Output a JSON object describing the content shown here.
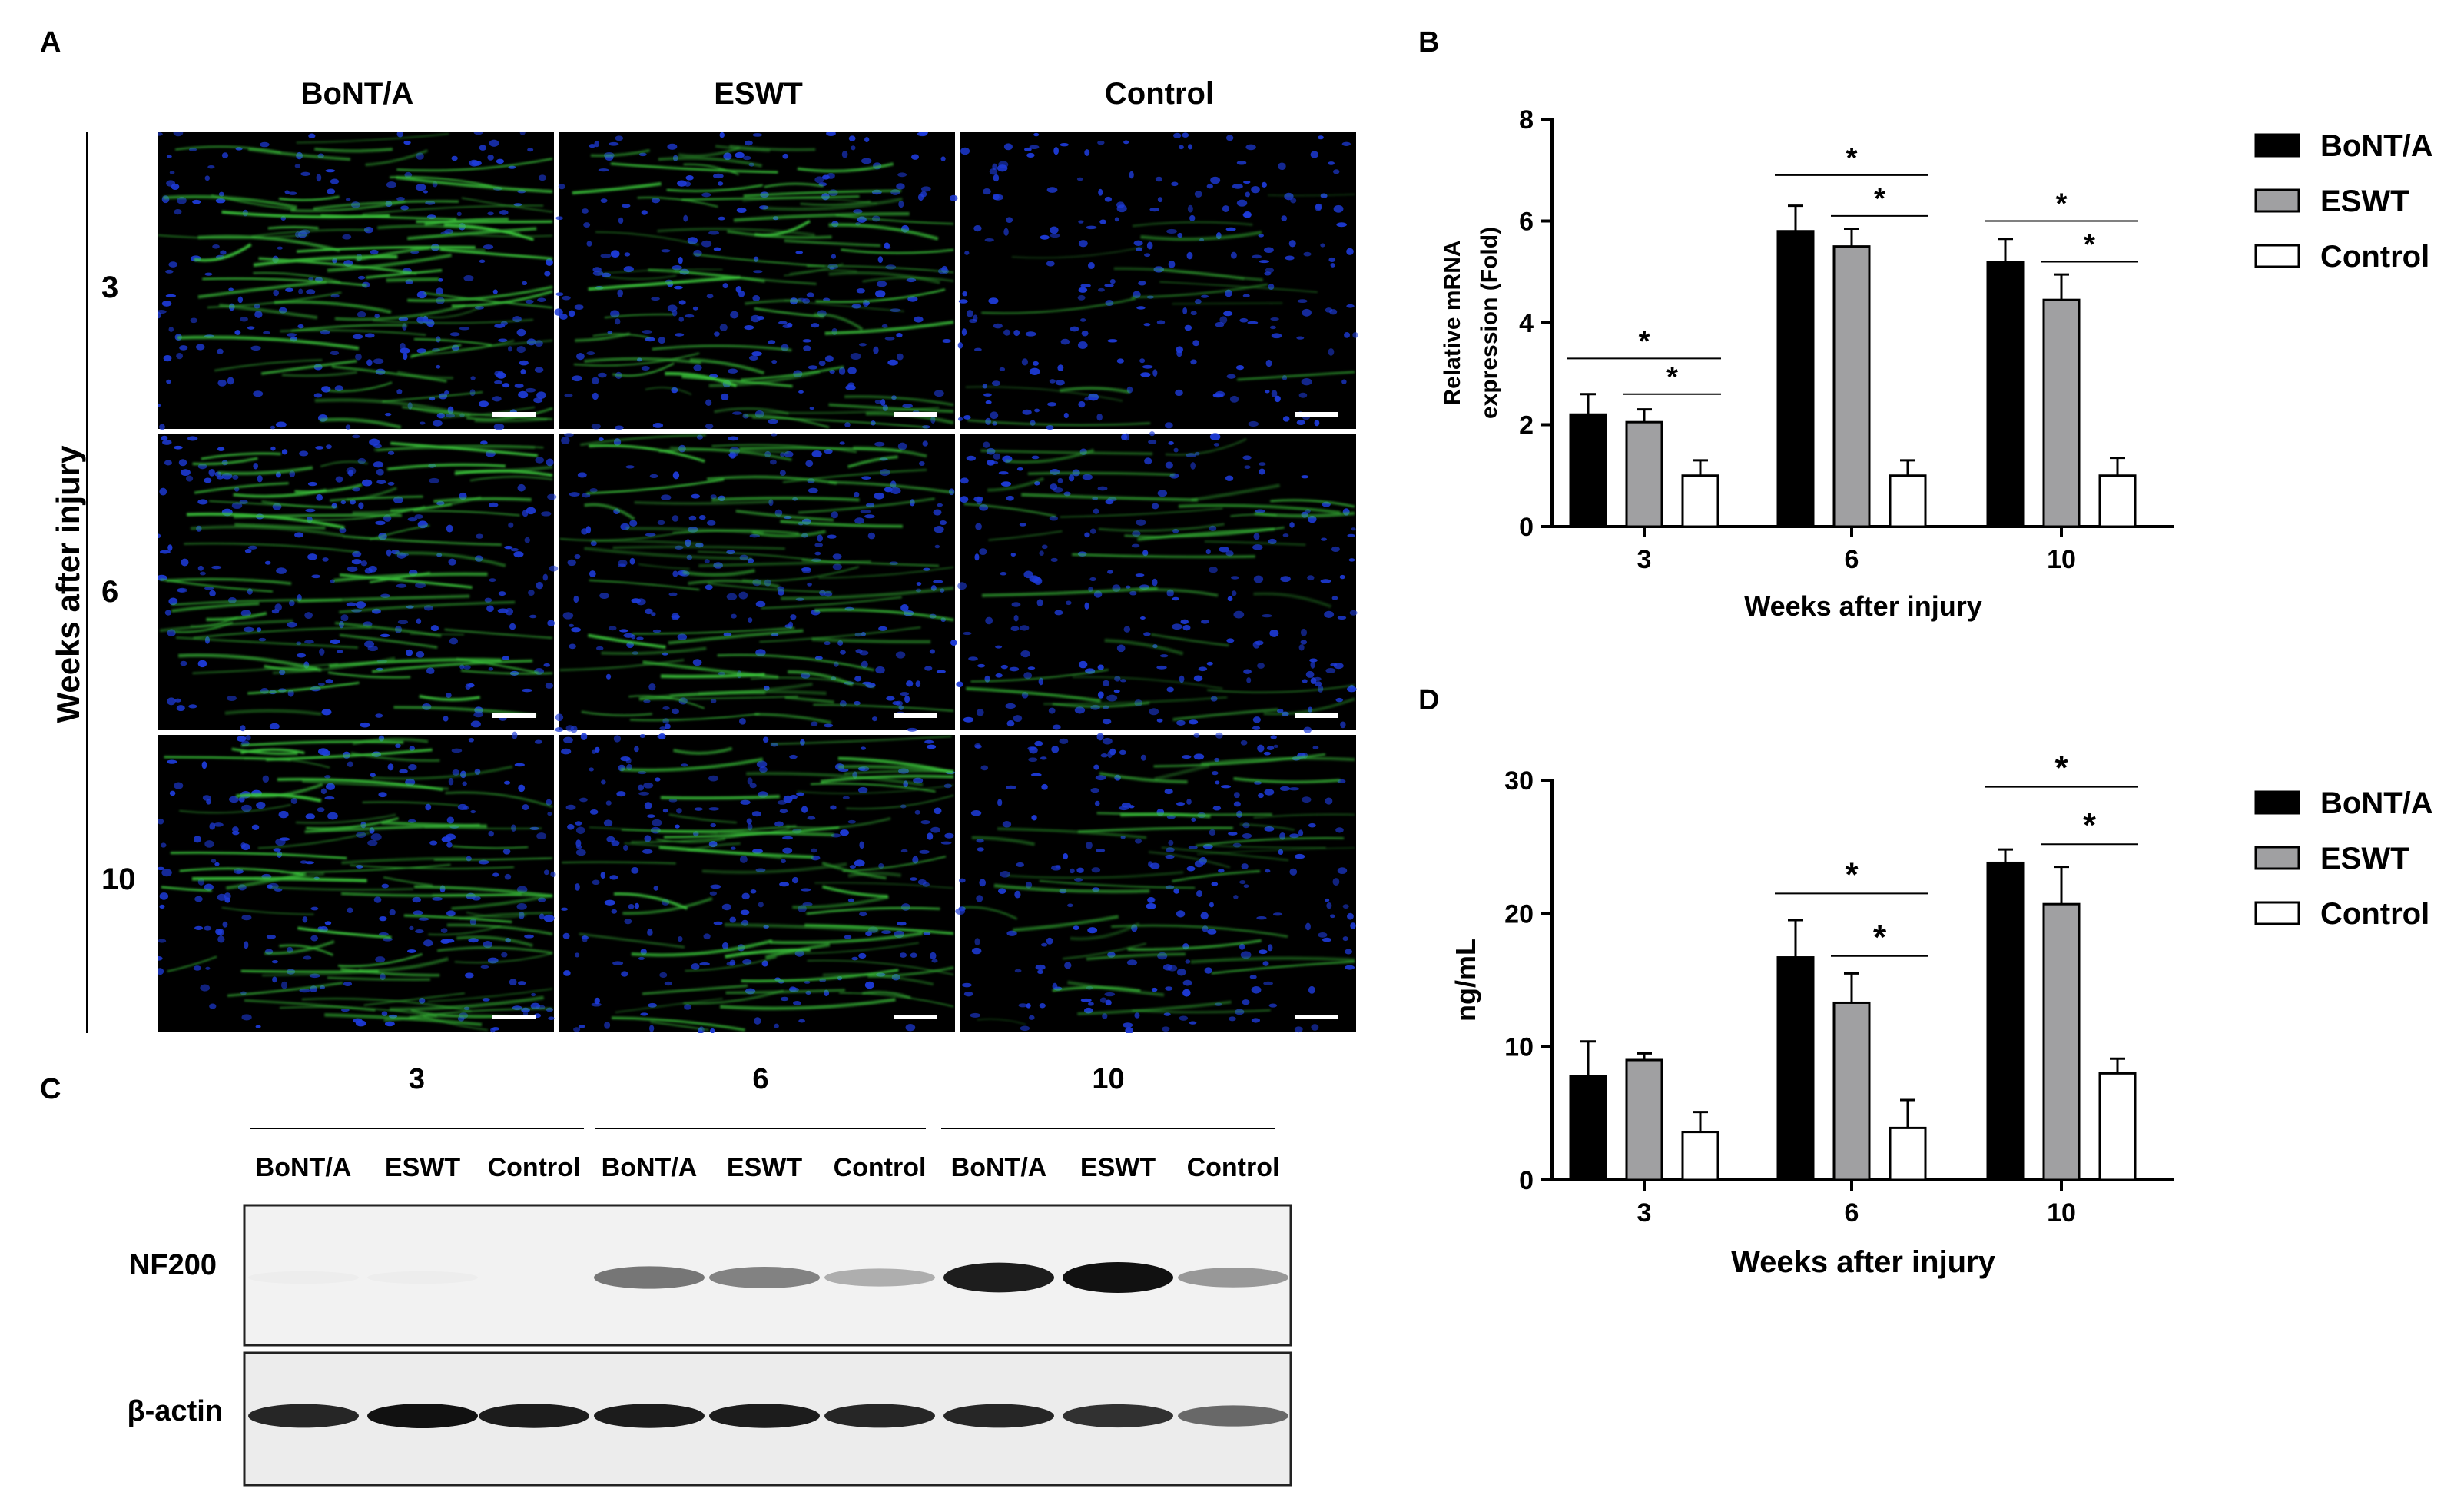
{
  "panels": {
    "a": "A",
    "b": "B",
    "c": "C",
    "d": "D"
  },
  "panel_a": {
    "columns": [
      "BoNT/A",
      "ESWT",
      "Control"
    ],
    "rows": [
      "3",
      "6",
      "10"
    ],
    "row_axis_label": "Weeks after injury",
    "colors": {
      "axon_green": "#3cc83c",
      "nuclei_blue": "#1e3cdc",
      "background": "#000000"
    }
  },
  "panel_c": {
    "groups": [
      "3",
      "6",
      "10"
    ],
    "lanes": [
      "BoNT/A",
      "ESWT",
      "Control",
      "BoNT/A",
      "ESWT",
      "Control",
      "BoNT/A",
      "ESWT",
      "Control"
    ],
    "blots": [
      "NF200",
      "β-actin"
    ],
    "nf200_intensity": [
      0.02,
      0.02,
      0.0,
      0.55,
      0.5,
      0.3,
      0.95,
      1.0,
      0.4
    ],
    "actin_intensity": [
      0.9,
      1.0,
      0.95,
      0.95,
      0.95,
      0.9,
      0.9,
      0.85,
      0.6
    ]
  },
  "chart_data": [
    {
      "type": "bar",
      "panel": "B",
      "categories": [
        "3",
        "6",
        "10"
      ],
      "xlabel": "Weeks after injury",
      "ylabel": "Relative mRNA expression (Fold)",
      "ylim": [
        0,
        8
      ],
      "yticks": [
        "0",
        "2",
        "4",
        "6",
        "8"
      ],
      "series": [
        {
          "name": "BoNT/A",
          "values": [
            2.2,
            5.8,
            5.2
          ],
          "errors": [
            0.4,
            0.5,
            0.45
          ],
          "color": "#000000"
        },
        {
          "name": "ESWT",
          "values": [
            2.05,
            5.5,
            4.45
          ],
          "errors": [
            0.25,
            0.35,
            0.5
          ],
          "color": "#a0a0a2"
        },
        {
          "name": "Control",
          "values": [
            1.0,
            1.0,
            1.0
          ],
          "errors": [
            0.3,
            0.3,
            0.35
          ],
          "color": "#ffffff"
        }
      ],
      "significance": "*",
      "legend": "right"
    },
    {
      "type": "bar",
      "panel": "D",
      "categories": [
        "3",
        "6",
        "10"
      ],
      "xlabel": "Weeks after injury",
      "ylabel": "ng/mL",
      "ylim": [
        0,
        30
      ],
      "yticks": [
        "0",
        "10",
        "20",
        "30"
      ],
      "series": [
        {
          "name": "BoNT/A",
          "values": [
            7.8,
            16.7,
            23.8
          ],
          "errors": [
            2.6,
            2.8,
            1.0
          ],
          "color": "#000000"
        },
        {
          "name": "ESWT",
          "values": [
            9.0,
            13.3,
            20.7
          ],
          "errors": [
            0.5,
            2.2,
            2.8
          ],
          "color": "#a0a0a2"
        },
        {
          "name": "Control",
          "values": [
            3.6,
            3.9,
            8.0
          ],
          "errors": [
            1.5,
            2.1,
            1.1
          ],
          "color": "#ffffff"
        }
      ],
      "significance": "*",
      "legend": "right"
    }
  ]
}
